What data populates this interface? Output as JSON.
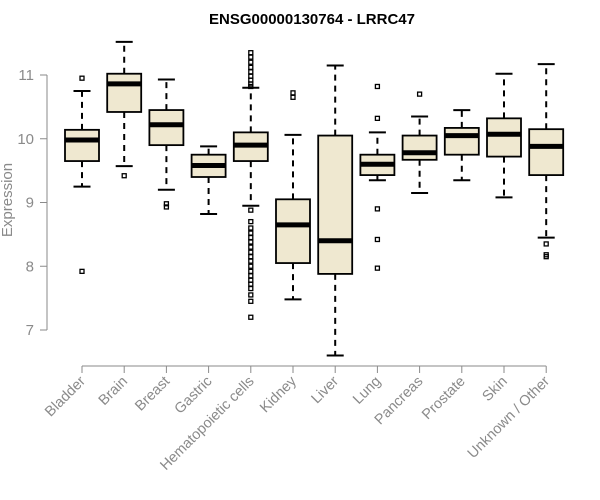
{
  "chart_data": {
    "type": "boxplot",
    "title": "ENSG00000130764 - LRRC47",
    "xlabel": "",
    "ylabel": "Expression",
    "ylim": [
      6.5,
      11.6
    ],
    "yticks": [
      7,
      8,
      9,
      10,
      11
    ],
    "grid": false,
    "colors": {
      "box_fill": "#efe8d0",
      "box_stroke": "#000000",
      "axis": "#8a8a8a",
      "text": "#8a8a8a"
    },
    "categories": [
      "Bladder",
      "Brain",
      "Breast",
      "Gastric",
      "Hematopoietic cells",
      "Kidney",
      "Liver",
      "Lung",
      "Pancreas",
      "Prostate",
      "Skin",
      "Unknown / Other"
    ],
    "boxes": [
      {
        "whisker_low": 9.25,
        "q1": 9.65,
        "median": 9.98,
        "q3": 10.14,
        "whisker_high": 10.75,
        "outliers": [
          10.95,
          7.92
        ]
      },
      {
        "whisker_low": 9.57,
        "q1": 10.42,
        "median": 10.86,
        "q3": 11.02,
        "whisker_high": 11.52,
        "outliers": [
          9.42
        ]
      },
      {
        "whisker_low": 9.2,
        "q1": 9.9,
        "median": 10.22,
        "q3": 10.45,
        "whisker_high": 10.93,
        "outliers": [
          8.98,
          8.93
        ]
      },
      {
        "whisker_low": 8.82,
        "q1": 9.4,
        "median": 9.58,
        "q3": 9.75,
        "whisker_high": 9.88,
        "outliers": []
      },
      {
        "whisker_low": 8.95,
        "q1": 9.65,
        "median": 9.9,
        "q3": 10.1,
        "whisker_high": 10.8,
        "outliers": [
          11.35,
          11.28,
          11.2,
          11.12,
          11.05,
          10.98,
          10.92,
          10.86,
          10.82,
          8.88,
          8.7,
          8.6,
          8.52,
          8.45,
          8.38,
          8.3,
          8.22,
          8.15,
          8.08,
          8.0,
          7.92,
          7.85,
          7.78,
          7.72,
          7.65,
          7.55,
          7.45,
          7.2
        ]
      },
      {
        "whisker_low": 7.48,
        "q1": 8.05,
        "median": 8.65,
        "q3": 9.05,
        "whisker_high": 10.06,
        "outliers": [
          10.72,
          10.65
        ]
      },
      {
        "whisker_low": 6.6,
        "q1": 7.88,
        "median": 8.4,
        "q3": 10.05,
        "whisker_high": 11.15,
        "outliers": []
      },
      {
        "whisker_low": 9.35,
        "q1": 9.43,
        "median": 9.6,
        "q3": 9.75,
        "whisker_high": 10.1,
        "outliers": [
          10.82,
          10.32,
          8.9,
          8.42,
          7.97
        ]
      },
      {
        "whisker_low": 9.15,
        "q1": 9.67,
        "median": 9.78,
        "q3": 10.05,
        "whisker_high": 10.35,
        "outliers": [
          10.7
        ]
      },
      {
        "whisker_low": 9.35,
        "q1": 9.75,
        "median": 10.05,
        "q3": 10.17,
        "whisker_high": 10.45,
        "outliers": []
      },
      {
        "whisker_low": 9.08,
        "q1": 9.72,
        "median": 10.07,
        "q3": 10.32,
        "whisker_high": 11.02,
        "outliers": []
      },
      {
        "whisker_low": 8.45,
        "q1": 9.43,
        "median": 9.88,
        "q3": 10.15,
        "whisker_high": 11.17,
        "outliers": [
          8.35,
          8.18,
          8.15
        ]
      }
    ]
  }
}
